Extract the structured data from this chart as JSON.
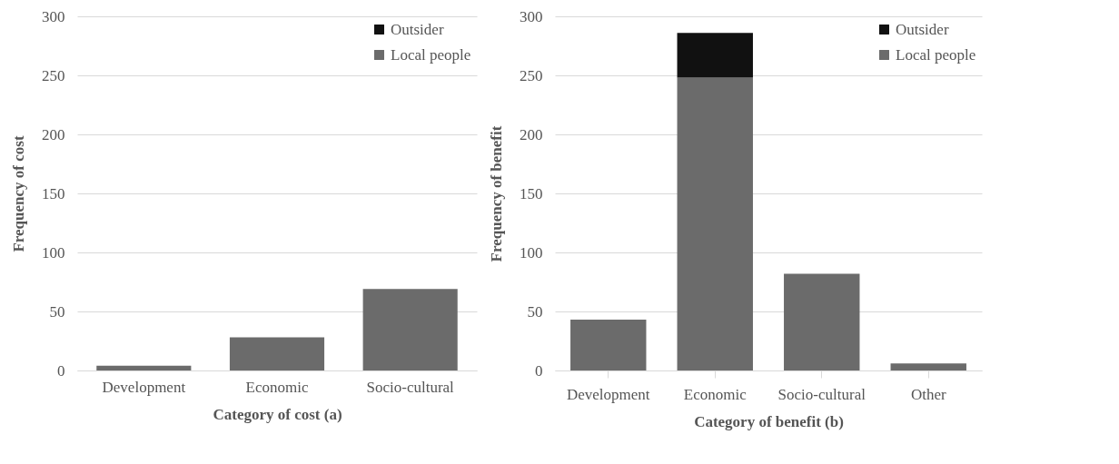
{
  "chart_data": [
    {
      "type": "bar",
      "stacked": true,
      "xlabel": "Category of cost (a)",
      "ylabel": "Frequency of cost",
      "categories": [
        "Development",
        "Economic",
        "Socio-cultural"
      ],
      "series": [
        {
          "name": "Local people",
          "color": "#6b6b6b",
          "values": [
            4,
            28,
            69
          ]
        },
        {
          "name": "Outsider",
          "color": "#111111",
          "values": [
            0,
            0,
            0
          ]
        }
      ],
      "ylim": [
        0,
        300
      ],
      "yticks": [
        0,
        50,
        100,
        150,
        200,
        250,
        300
      ],
      "grid": "y",
      "legend": "top right"
    },
    {
      "type": "bar",
      "stacked": true,
      "xlabel": "Category of benefit (b)",
      "ylabel": "Frequency of benefit",
      "categories": [
        "Development",
        "Economic",
        "Socio-cultural",
        "Other"
      ],
      "series": [
        {
          "name": "Local people",
          "color": "#6b6b6b",
          "values": [
            43,
            248,
            82,
            6
          ]
        },
        {
          "name": "Outsider",
          "color": "#111111",
          "values": [
            0,
            38,
            0,
            0
          ]
        }
      ],
      "ylim": [
        0,
        300
      ],
      "yticks": [
        0,
        50,
        100,
        150,
        200,
        250,
        300
      ],
      "grid": "y",
      "legend": "top right"
    }
  ]
}
